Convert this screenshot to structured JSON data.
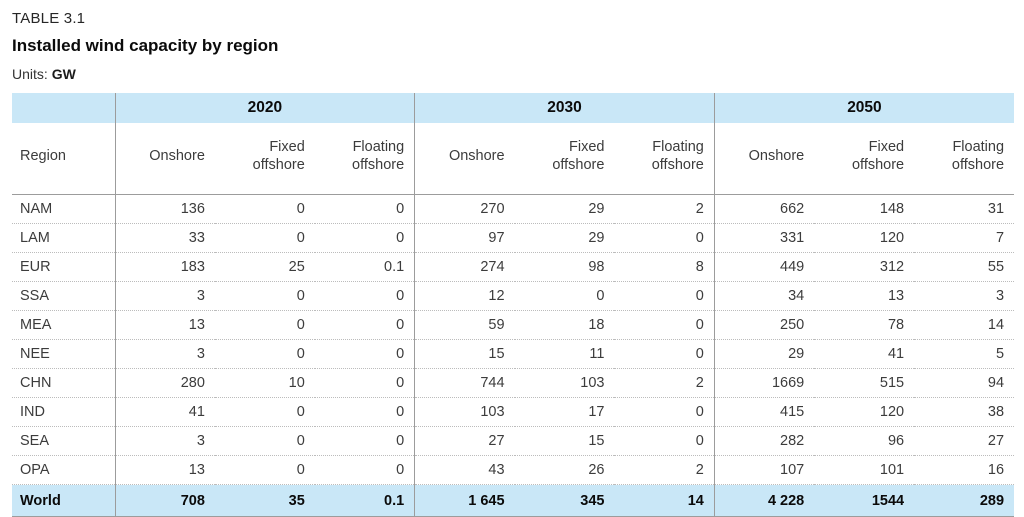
{
  "caption": "TABLE 3.1",
  "title": "Installed wind capacity by region",
  "units_label": "Units:",
  "units_value": "GW",
  "colors": {
    "band_blue": "#c9e7f7",
    "solid_line_gray": "#9c9c9c",
    "dotted_line_gray": "#bcbcbc",
    "text_dark": "#3c3c3c",
    "text_bold": "#0b0b0b"
  },
  "chart_data": {
    "type": "table",
    "title": "Installed wind capacity by region",
    "units": "GW",
    "region_header": "Region",
    "years": [
      "2020",
      "2030",
      "2050"
    ],
    "columns": [
      "Onshore",
      "Fixed offshore",
      "Floating offshore"
    ],
    "columns_display": [
      "Onshore",
      "Fixed\noffshore",
      "Floating\noffshore"
    ],
    "rows": [
      {
        "region": "NAM",
        "values": [
          136,
          0,
          0,
          270,
          29,
          2,
          662,
          148,
          31
        ]
      },
      {
        "region": "LAM",
        "values": [
          33,
          0,
          0,
          97,
          29,
          0,
          331,
          120,
          7
        ]
      },
      {
        "region": "EUR",
        "values": [
          183,
          25,
          0.1,
          274,
          98,
          8,
          449,
          312,
          55
        ]
      },
      {
        "region": "SSA",
        "values": [
          3,
          0,
          0,
          12,
          0,
          0,
          34,
          13,
          3
        ]
      },
      {
        "region": "MEA",
        "values": [
          13,
          0,
          0,
          59,
          18,
          0,
          250,
          78,
          14
        ]
      },
      {
        "region": "NEE",
        "values": [
          3,
          0,
          0,
          15,
          11,
          0,
          29,
          41,
          5
        ]
      },
      {
        "region": "CHN",
        "values": [
          280,
          10,
          0,
          744,
          103,
          2,
          1669,
          515,
          94
        ]
      },
      {
        "region": "IND",
        "values": [
          41,
          0,
          0,
          103,
          17,
          0,
          415,
          120,
          38
        ]
      },
      {
        "region": "SEA",
        "values": [
          3,
          0,
          0,
          27,
          15,
          0,
          282,
          96,
          27
        ]
      },
      {
        "region": "OPA",
        "values": [
          13,
          0,
          0,
          43,
          26,
          2,
          107,
          101,
          16
        ]
      }
    ],
    "totals": {
      "region": "World",
      "values": [
        708,
        35,
        0.1,
        1645,
        345,
        14,
        4228,
        1544,
        289
      ],
      "display": [
        "708",
        "35",
        "0.1",
        "1 645",
        "345",
        "14",
        "4 228",
        "1544",
        "289"
      ]
    }
  }
}
